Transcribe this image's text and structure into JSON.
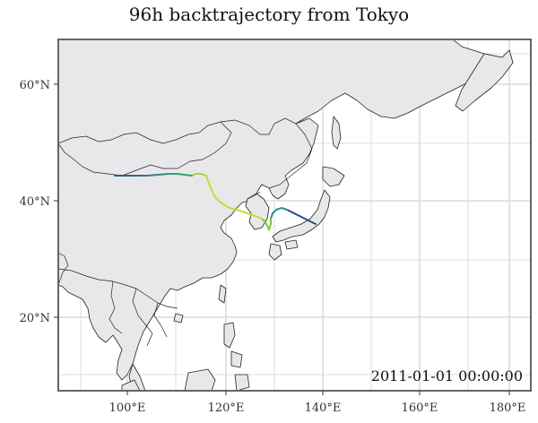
{
  "title": "96h backtrajectory from Tokyo",
  "timestamp": "2011-01-01 00:00:00",
  "x_ticks": [
    "100°E",
    "120°E",
    "140°E",
    "160°E",
    "180°E"
  ],
  "y_ticks": [
    "60°N",
    "40°N",
    "20°N"
  ],
  "colors": {
    "panel": "#ffffff",
    "land": "#e8e8ea",
    "coast": "#222222",
    "grid": "#dcdcdc",
    "frame": "#666666"
  },
  "trajectory_colormap": [
    "#2b4a8c",
    "#2a8c8a",
    "#2fa66a",
    "#7ec24a",
    "#c8dc2c",
    "#e6e62a"
  ]
}
